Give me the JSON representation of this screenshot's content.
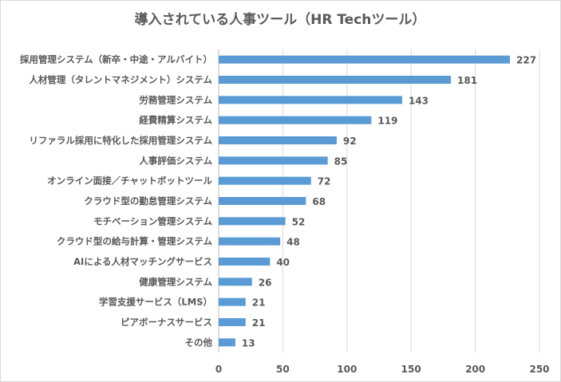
{
  "chart_data": {
    "type": "bar",
    "orientation": "horizontal",
    "title": "導入されている人事ツール（HR Techツール）",
    "categories": [
      "採用管理システム（新卒・中途・アルバイト）",
      "人材管理（タレントマネジメント）システム",
      "労務管理システム",
      "経費精算システム",
      "リファラル採用に特化した採用管理システム",
      "人事評価システム",
      "オンライン面接／チャットボットツール",
      "クラウド型の勤怠管理システム",
      "モチベーション管理システム",
      "クラウド型の給与計算・管理システム",
      "AIによる人材マッチングサービス",
      "健康管理システム",
      "学習支援サービス（LMS）",
      "ピアボーナスサービス",
      "その他"
    ],
    "values": [
      227,
      181,
      143,
      119,
      92,
      85,
      72,
      68,
      52,
      48,
      40,
      26,
      21,
      21,
      13
    ],
    "xlim": [
      0,
      250
    ],
    "xticks": [
      0,
      50,
      100,
      150,
      200,
      250
    ],
    "xlabel": "",
    "ylabel": "",
    "grid": true,
    "data_labels": true,
    "legend": "none",
    "colors": {
      "bar": "#5B9BD5",
      "text": "#595959",
      "grid": "#D9D9D9"
    }
  }
}
